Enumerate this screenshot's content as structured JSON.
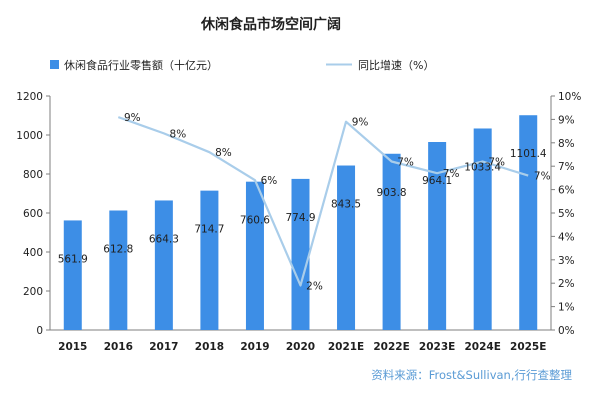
{
  "chart_data": {
    "type": "bar",
    "title": "休闲食品市场空间广阔",
    "categories": [
      "2015",
      "2016",
      "2017",
      "2018",
      "2019",
      "2020",
      "2021E",
      "2022E",
      "2023E",
      "2024E",
      "2025E"
    ],
    "series": [
      {
        "name": "休闲食品行业零售额（十亿元）",
        "type": "bar",
        "axis": "left",
        "values": [
          561.9,
          612.8,
          664.3,
          714.7,
          760.6,
          774.9,
          843.5,
          903.8,
          964.1,
          1033.4,
          1101.4
        ],
        "labels": [
          "561.9",
          "612.8",
          "664.3",
          "714.7",
          "760.6",
          "774.9",
          "843.5",
          "903.8",
          "964.1",
          "1033.4",
          "1101.4"
        ]
      },
      {
        "name": "同比增速（%）",
        "type": "line",
        "axis": "right",
        "values": [
          null,
          9.1,
          8.4,
          7.6,
          6.4,
          1.9,
          8.9,
          7.2,
          6.7,
          7.2,
          6.6
        ],
        "labels": [
          "",
          "9%",
          "8%",
          "8%",
          "6%",
          "2%",
          "9%",
          "7%",
          "7%",
          "7%",
          "7%"
        ]
      }
    ],
    "ylim_left": [
      0,
      1200
    ],
    "yticks_left": [
      "0",
      "200",
      "400",
      "600",
      "800",
      "1000",
      "1200"
    ],
    "ylim_right": [
      0,
      10
    ],
    "yticks_right": [
      "0%",
      "1%",
      "2%",
      "3%",
      "4%",
      "5%",
      "6%",
      "7%",
      "8%",
      "9%",
      "10%"
    ],
    "legend_position": "top",
    "grid": false,
    "source": "资料来源：Frost&Sullivan,行行查整理",
    "colors": {
      "bar": "#3d8ee6",
      "line": "#a9cdea",
      "source": "#5a9bd5"
    }
  }
}
